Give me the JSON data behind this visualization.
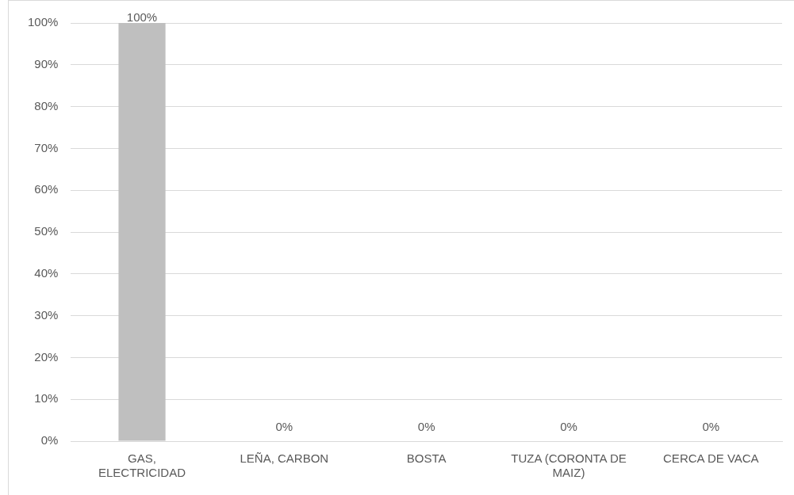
{
  "chart_data": {
    "type": "bar",
    "categories": [
      "GAS, ELECTRICIDAD",
      "LEÑA, CARBON",
      "BOSTA",
      "TUZA (CORONTA DE MAIZ)",
      "CERCA DE VACA"
    ],
    "values": [
      100,
      0,
      0,
      0,
      0
    ],
    "color": "#bfbfbf",
    "data_labels": true,
    "value_labels": [
      "100%",
      "0%",
      "0%",
      "0%",
      "0%"
    ],
    "ylim": [
      0,
      100
    ],
    "yticks": [
      {
        "value": 0,
        "label": "0%"
      },
      {
        "value": 10,
        "label": "10%"
      },
      {
        "value": 20,
        "label": "20%"
      },
      {
        "value": 30,
        "label": "30%"
      },
      {
        "value": 40,
        "label": "40%"
      },
      {
        "value": 50,
        "label": "50%"
      },
      {
        "value": 60,
        "label": "60%"
      },
      {
        "value": 70,
        "label": "70%"
      },
      {
        "value": 80,
        "label": "80%"
      },
      {
        "value": 90,
        "label": "90%"
      },
      {
        "value": 100,
        "label": "100%"
      }
    ],
    "grid": "y",
    "legend": false
  }
}
